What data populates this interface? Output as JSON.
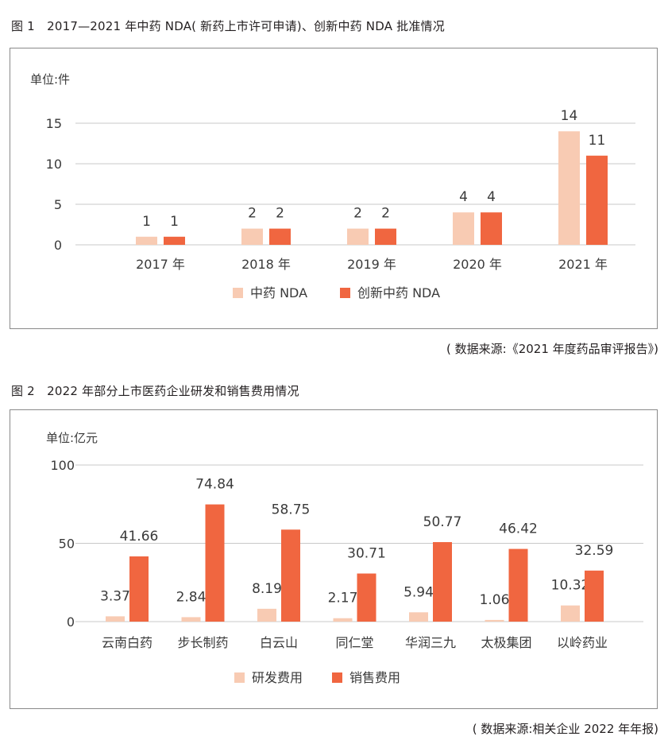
{
  "colors": {
    "light": "#F8CBB3",
    "dark": "#F06640",
    "grid": "#c8c8c8"
  },
  "chart_data": [
    {
      "type": "bar",
      "title": "图 1　2017—2021 年中药 NDA( 新药上市许可申请)、创新中药 NDA 批准情况",
      "unit_label": "单位:件",
      "categories": [
        "2017 年",
        "2018 年",
        "2019 年",
        "2020 年",
        "2021 年"
      ],
      "series": [
        {
          "name": "中药 NDA",
          "values": [
            1,
            2,
            2,
            4,
            14
          ]
        },
        {
          "name": "创新中药 NDA",
          "values": [
            1,
            2,
            2,
            4,
            11
          ]
        }
      ],
      "ylim": [
        0,
        15
      ],
      "yticks": [
        0,
        5,
        10,
        15
      ],
      "grid": true,
      "legend": "bottom-center",
      "source": "( 数据来源:《2021 年度药品审评报告》)"
    },
    {
      "type": "bar",
      "title": "图 2　2022 年部分上市医药企业研发和销售费用情况",
      "unit_label": "单位:亿元",
      "categories": [
        "云南白药",
        "步长制药",
        "白云山",
        "同仁堂",
        "华润三九",
        "太极集团",
        "以岭药业"
      ],
      "series": [
        {
          "name": "研发费用",
          "values": [
            3.37,
            2.84,
            8.19,
            2.17,
            5.94,
            1.06,
            10.32
          ]
        },
        {
          "name": "销售费用",
          "values": [
            41.66,
            74.84,
            58.75,
            30.71,
            50.77,
            46.42,
            32.59
          ]
        }
      ],
      "ylim": [
        0,
        100
      ],
      "yticks": [
        0,
        50,
        100
      ],
      "grid": true,
      "legend": "bottom-center",
      "source": "( 数据来源:相关企业 2022 年年报)"
    }
  ]
}
